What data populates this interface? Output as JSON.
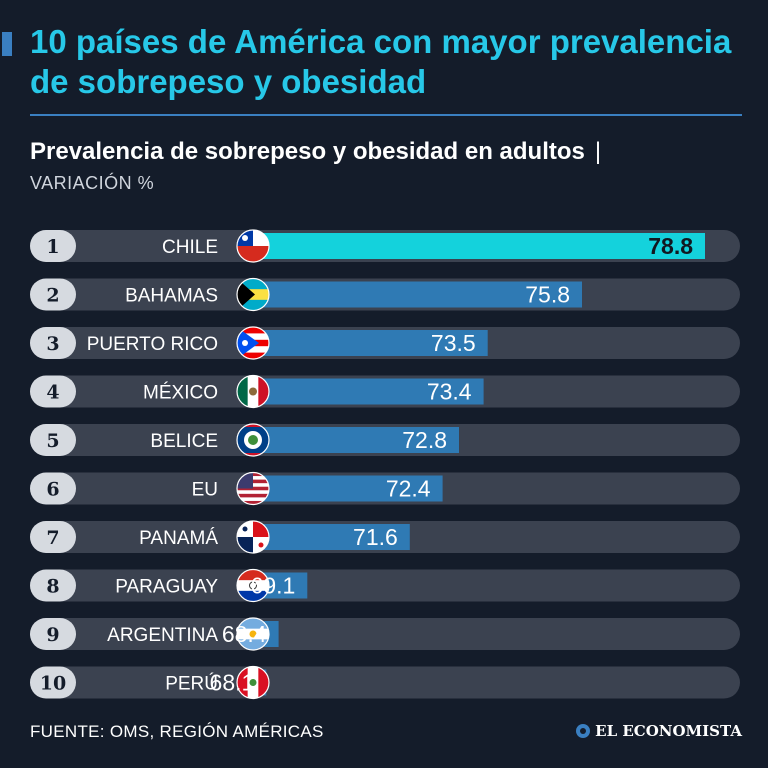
{
  "header": {
    "title": "10 países de América con mayor prevalencia de sobrepeso y obesidad",
    "subtitle": "Prevalencia de sobrepeso y obesidad en adultos",
    "separator": "|",
    "variation_label": "VARIACIÓN %"
  },
  "chart_data": {
    "type": "bar",
    "orientation": "horizontal",
    "categories": [
      "CHILE",
      "BAHAMAS",
      "PUERTO RICO",
      "MÉXICO",
      "BELICE",
      "EU",
      "PANAMÁ",
      "PARAGUAY",
      "ARGENTINA",
      "PERÚ"
    ],
    "ranks": [
      "1",
      "2",
      "3",
      "4",
      "5",
      "6",
      "7",
      "8",
      "9",
      "10"
    ],
    "values": [
      78.8,
      75.8,
      73.5,
      73.4,
      72.8,
      72.4,
      71.6,
      69.1,
      68.4,
      68.1
    ],
    "value_labels": [
      "78.8",
      "75.8",
      "73.5",
      "73.4",
      "72.8",
      "72.4",
      "71.6",
      "69.1",
      "68.4",
      "68.1"
    ],
    "flag_icons": [
      "chile-flag-icon",
      "bahamas-flag-icon",
      "puerto-rico-flag-icon",
      "mexico-flag-icon",
      "belize-flag-icon",
      "usa-flag-icon",
      "panama-flag-icon",
      "paraguay-flag-icon",
      "argentina-flag-icon",
      "peru-flag-icon"
    ],
    "highlight_index": 0,
    "colors": {
      "highlight": "#14d2dc",
      "bar": "#2f7ab4",
      "track": "#3b4250",
      "rank_badge": "#d6dae0",
      "rank_text": "#141c2a"
    }
  },
  "footer": {
    "source": "FUENTE: OMS, REGIÓN AMÉRICAS",
    "brand": "EL ECONOMISTA"
  }
}
